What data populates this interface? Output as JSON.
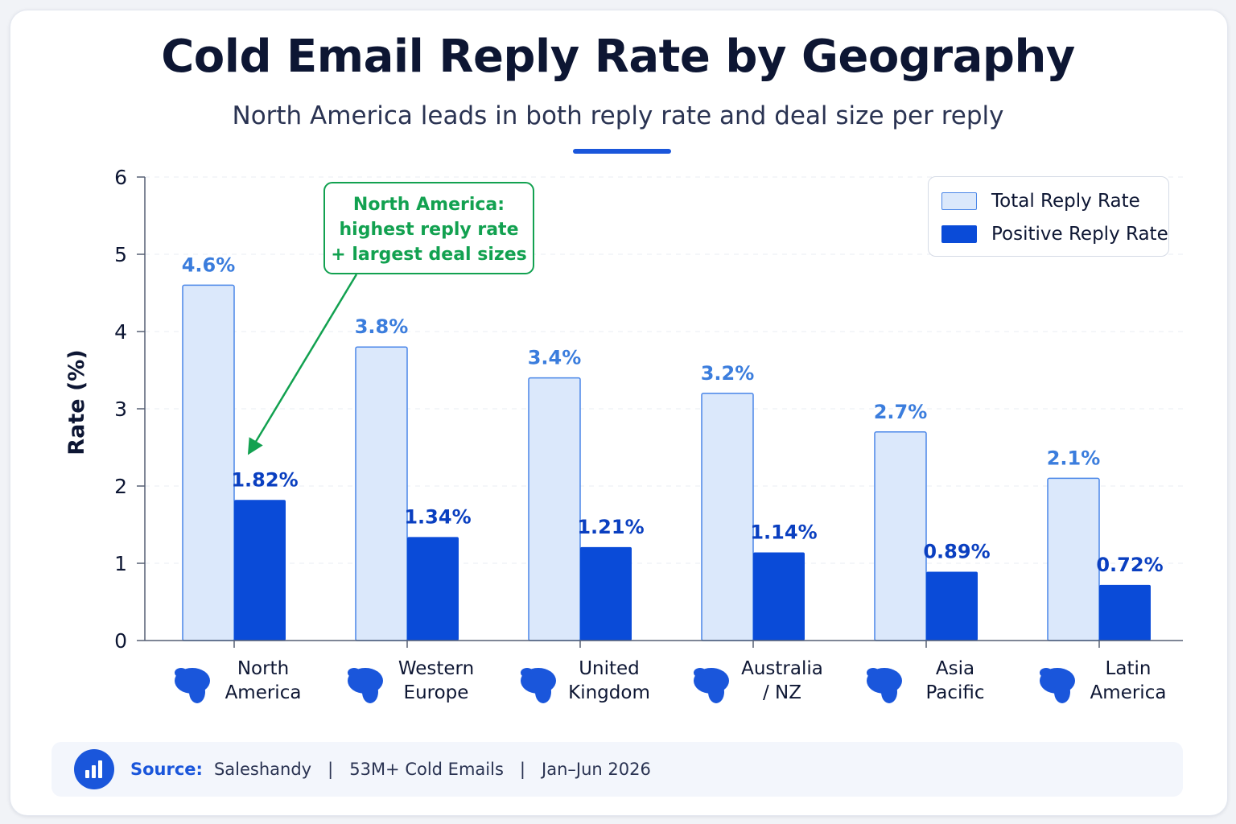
{
  "title": "Cold Email Reply Rate by Geography",
  "subtitle": "North America leads in both reply rate and deal size per reply",
  "chart_data": {
    "type": "bar",
    "categories": [
      "North America",
      "Western Europe",
      "United Kingdom",
      "Australia / NZ",
      "Asia Pacific",
      "Latin America"
    ],
    "category_lines": [
      [
        "North",
        "America"
      ],
      [
        "Western",
        "Europe"
      ],
      [
        "United",
        "Kingdom"
      ],
      [
        "Australia",
        "/ NZ"
      ],
      [
        "Asia",
        "Pacific"
      ],
      [
        "Latin",
        "America"
      ]
    ],
    "series": [
      {
        "name": "Total Reply Rate",
        "values": [
          4.6,
          3.8,
          3.4,
          3.2,
          2.7,
          2.1
        ],
        "labels": [
          "4.6%",
          "3.8%",
          "3.4%",
          "3.2%",
          "2.7%",
          "2.1%"
        ]
      },
      {
        "name": "Positive Reply Rate",
        "values": [
          1.82,
          1.34,
          1.21,
          1.14,
          0.89,
          0.72
        ],
        "labels": [
          "1.82%",
          "1.34%",
          "1.21%",
          "1.14%",
          "0.89%",
          "0.72%"
        ]
      }
    ],
    "ylabel": "Rate (%)",
    "ylim": [
      0,
      6
    ],
    "yticks": [
      0,
      1,
      2,
      3,
      4,
      5,
      6
    ],
    "grid": true,
    "legend_position": "top-right",
    "annotation": {
      "lines": [
        "North America:",
        "highest reply rate",
        "+ largest deal sizes"
      ],
      "target_category": "North America",
      "target_series": "Positive Reply Rate"
    },
    "category_icons": [
      "north-america-map-icon",
      "europe-map-icon",
      "uk-map-icon",
      "australia-map-icon",
      "asia-map-icon",
      "latin-america-map-icon"
    ]
  },
  "colors": {
    "total_fill": "#dbe8fb",
    "total_stroke": "#4a86e8",
    "total_label": "#3b7ddd",
    "positive_fill": "#0a4bd8",
    "positive_label": "#0a3fc0",
    "annotation": "#12a150",
    "axis": "#555f73",
    "text": "#0d1633",
    "icon": "#1a56db"
  },
  "source": {
    "label": "Source:",
    "text": "Saleshandy   |   53M+ Cold Emails   |   Jan–Jun 2026"
  }
}
